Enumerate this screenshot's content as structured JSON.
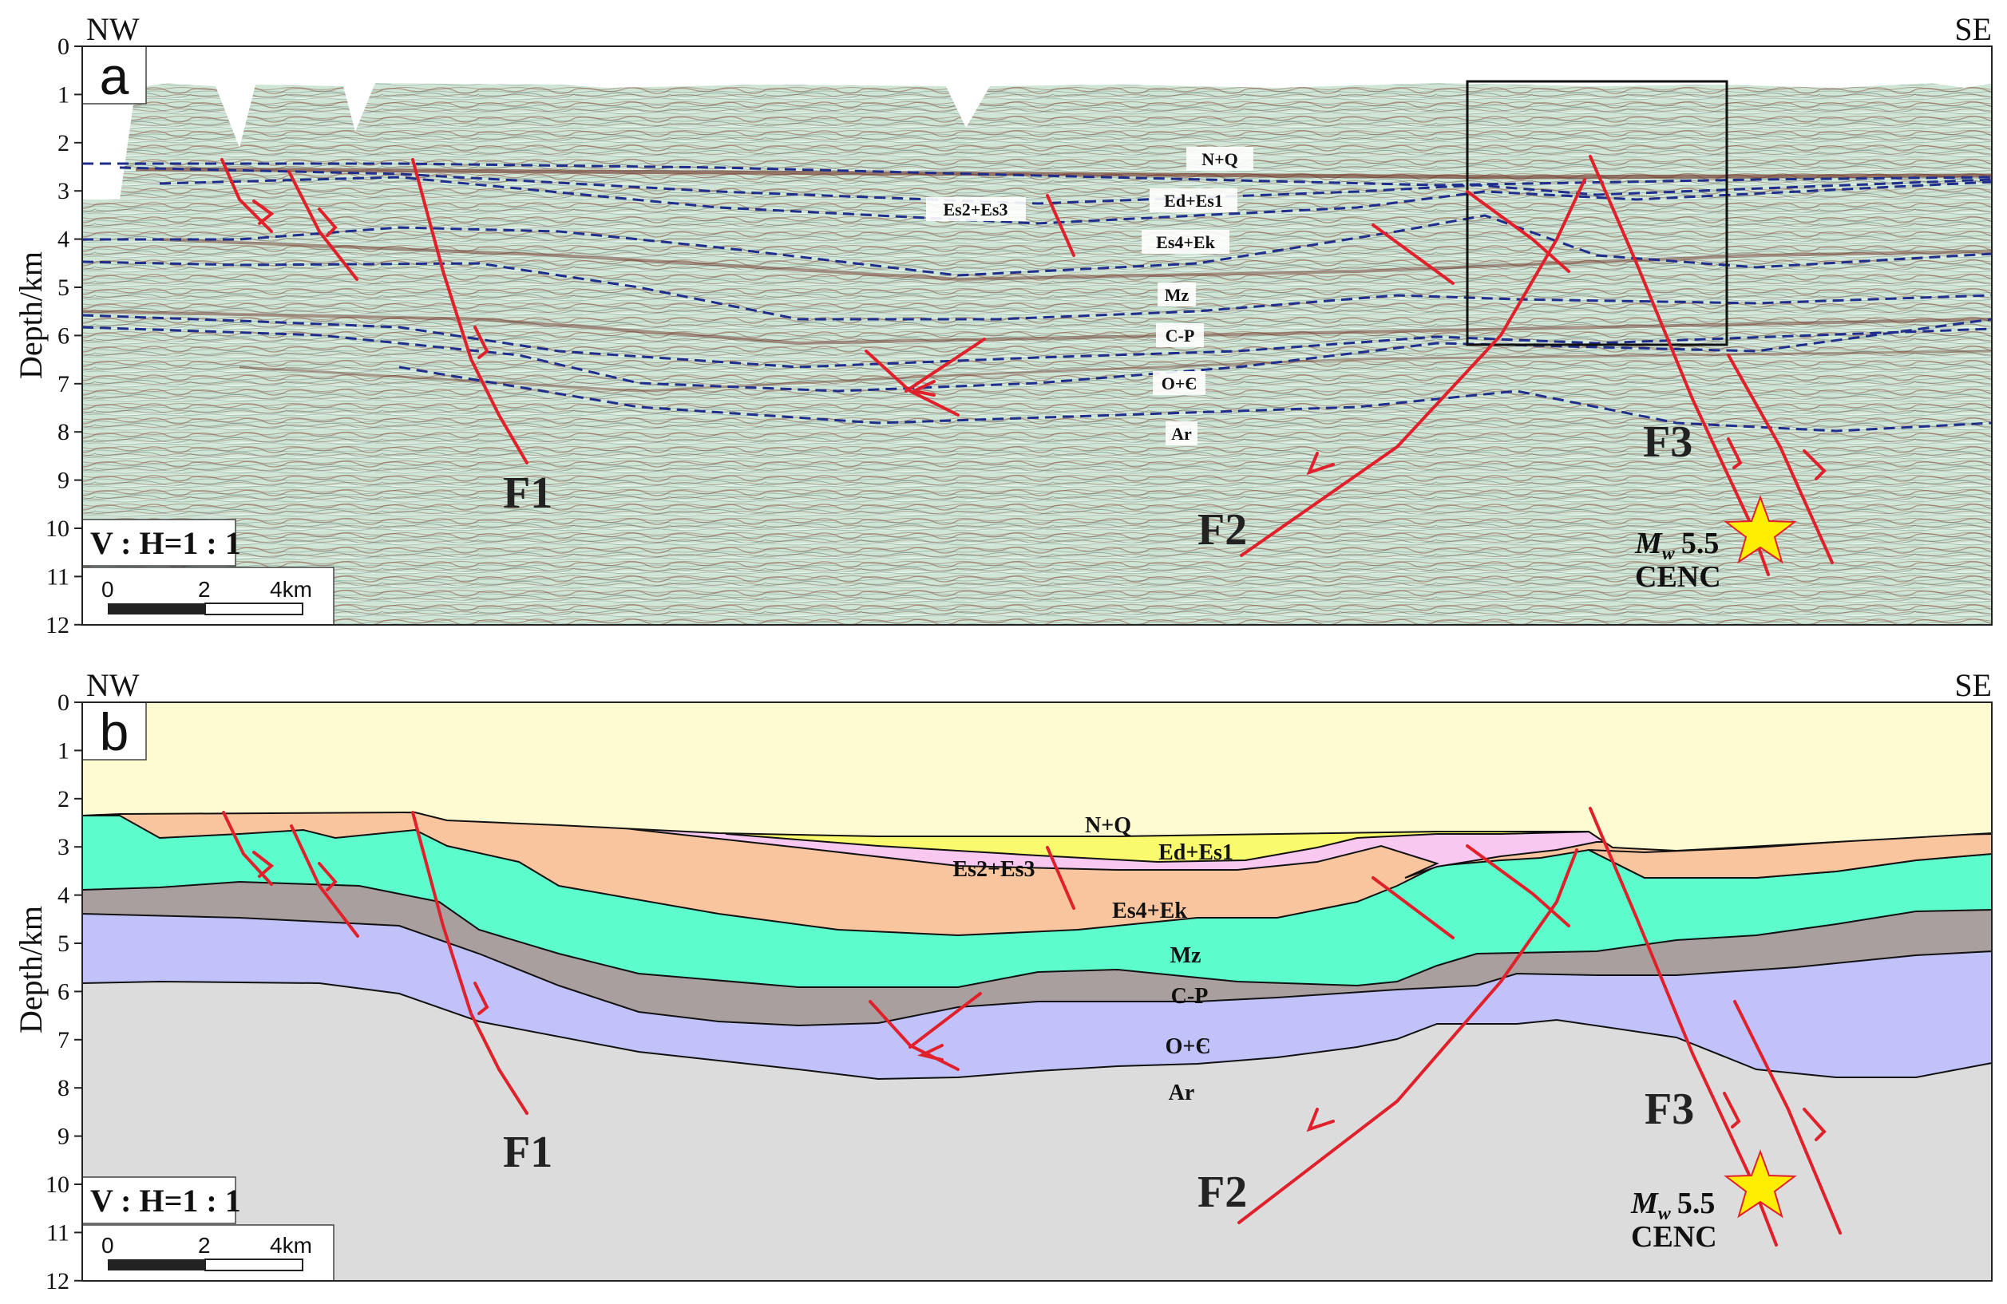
{
  "panels": [
    {
      "letter": "a",
      "direction_left": "NW",
      "direction_right": "SE",
      "ylabel": "Depth/km",
      "depth_ticks": [
        "0",
        "1",
        "2",
        "3",
        "4",
        "5",
        "6",
        "7",
        "8",
        "9",
        "10",
        "11",
        "12"
      ],
      "scale_ratio": "V : H=1 : 1",
      "scale_bar_labels": [
        "0",
        "2",
        "4km"
      ],
      "layer_labels": [
        "N+Q",
        "Ed+Es1",
        "Es2+Es3",
        "Es4+Ek",
        "Mz",
        "C-P",
        "O+Є",
        "Ar"
      ],
      "fault_labels": [
        "F1",
        "F2",
        "F3"
      ],
      "earthquake": {
        "magnitude_symbol": "M",
        "magnitude_subscript": "w",
        "magnitude_value": "5.5",
        "source": "CENC"
      }
    },
    {
      "letter": "b",
      "direction_left": "NW",
      "direction_right": "SE",
      "ylabel": "Depth/km",
      "depth_ticks": [
        "0",
        "1",
        "2",
        "3",
        "4",
        "5",
        "6",
        "7",
        "8",
        "9",
        "10",
        "11",
        "12"
      ],
      "scale_ratio": "V : H=1 : 1",
      "scale_bar_labels": [
        "0",
        "2",
        "4km"
      ],
      "layer_labels": [
        "N+Q",
        "Ed+Es1",
        "Es2+Es3",
        "Es4+Ek",
        "Mz",
        "C-P",
        "O+Є",
        "Ar"
      ],
      "fault_labels": [
        "F1",
        "F2",
        "F3"
      ],
      "earthquake": {
        "magnitude_symbol": "M",
        "magnitude_subscript": "w",
        "magnitude_value": "5.5",
        "source": "CENC"
      }
    }
  ],
  "colors": {
    "fault": "#e0202a",
    "horizon_dashed": "#1f2d8c",
    "seismic_bg": "#cfe6d6",
    "nq": "#fefbd2",
    "ed_es1": "#fafa6e",
    "es2_es3": "#f8c8f0",
    "es4_ek": "#f9c59f",
    "mz": "#5cfccc",
    "cp": "#aa9f9f",
    "o_e": "#c2c2fb",
    "ar": "#dcdcdc",
    "star": "#ffee00"
  }
}
